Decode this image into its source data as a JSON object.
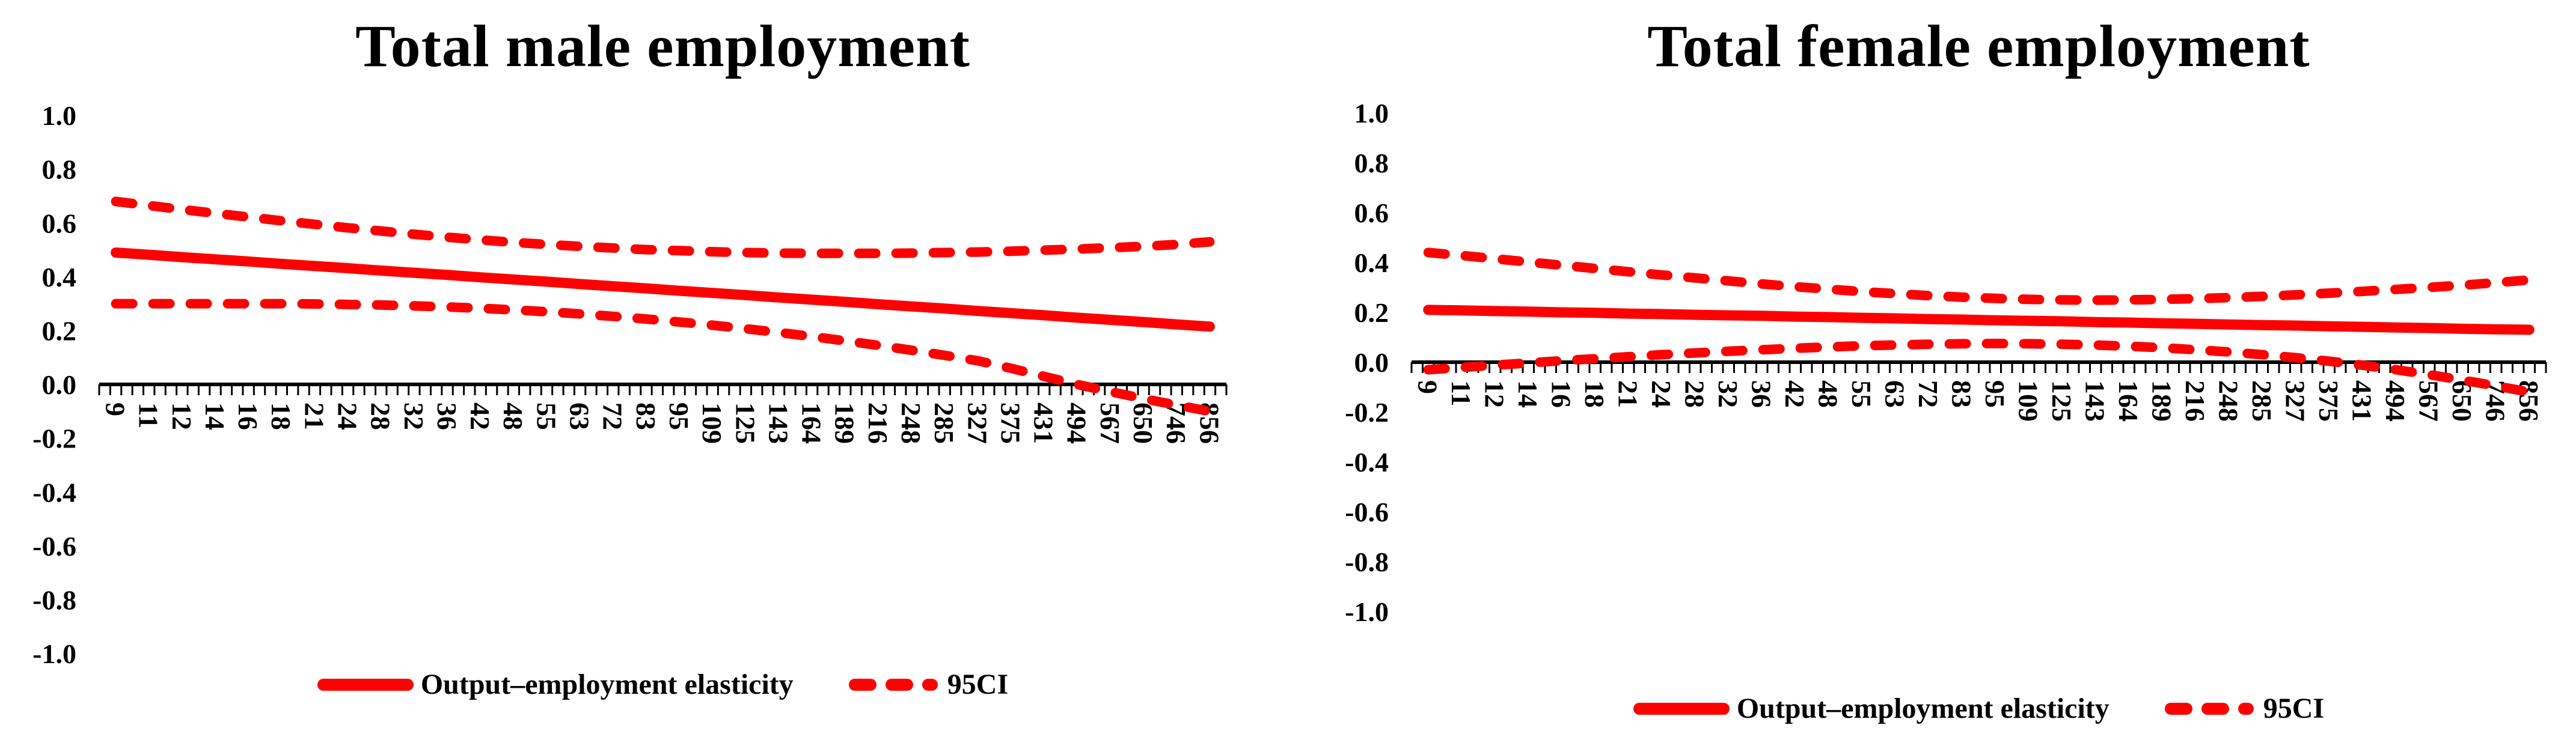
{
  "colors": {
    "series_red": "#FF0000",
    "axis_black": "#000000"
  },
  "chart_data": [
    {
      "type": "line",
      "title": "Total male employment",
      "xlabel": "",
      "ylabel": "",
      "ylim": [
        -1.0,
        1.0
      ],
      "grid": false,
      "legend_position": "bottom",
      "legend_entries": [
        "Output–employment elasticity",
        "95CI"
      ],
      "y_tick_labels": [
        "1.0",
        "0.8",
        "0.6",
        "0.4",
        "0.2",
        "0.0",
        "-0.2",
        "-0.4",
        "-0.6",
        "-0.8",
        "-1.0"
      ],
      "x_categories": [
        "9",
        "11",
        "12",
        "14",
        "16",
        "18",
        "21",
        "24",
        "28",
        "32",
        "36",
        "42",
        "48",
        "55",
        "63",
        "72",
        "83",
        "95",
        "109",
        "125",
        "143",
        "164",
        "189",
        "216",
        "248",
        "285",
        "327",
        "375",
        "431",
        "494",
        "567",
        "650",
        "746",
        "856"
      ],
      "series": [
        {
          "name": "Output–employment elasticity",
          "style": "solid",
          "values": [
            0.49,
            0.482,
            0.473,
            0.465,
            0.457,
            0.448,
            0.44,
            0.432,
            0.423,
            0.415,
            0.407,
            0.398,
            0.39,
            0.382,
            0.373,
            0.365,
            0.357,
            0.348,
            0.34,
            0.332,
            0.323,
            0.315,
            0.307,
            0.298,
            0.29,
            0.282,
            0.273,
            0.265,
            0.257,
            0.248,
            0.24,
            0.232,
            0.223,
            0.215
          ]
        },
        {
          "name": "95CI upper",
          "style": "dashed",
          "values": [
            0.68,
            0.665,
            0.65,
            0.636,
            0.622,
            0.608,
            0.595,
            0.582,
            0.57,
            0.558,
            0.547,
            0.537,
            0.528,
            0.52,
            0.513,
            0.507,
            0.501,
            0.497,
            0.493,
            0.49,
            0.488,
            0.487,
            0.487,
            0.487,
            0.488,
            0.49,
            0.492,
            0.495,
            0.499,
            0.503,
            0.508,
            0.513,
            0.52,
            0.53
          ]
        },
        {
          "name": "95CI lower",
          "style": "dashed",
          "values": [
            0.3,
            0.3,
            0.3,
            0.3,
            0.3,
            0.3,
            0.299,
            0.297,
            0.295,
            0.292,
            0.288,
            0.283,
            0.277,
            0.27,
            0.262,
            0.253,
            0.243,
            0.232,
            0.22,
            0.207,
            0.193,
            0.178,
            0.162,
            0.145,
            0.127,
            0.108,
            0.088,
            0.06,
            0.03,
            0.0,
            -0.027,
            -0.053,
            -0.077,
            -0.1
          ]
        }
      ]
    },
    {
      "type": "line",
      "title": "Total female employment",
      "xlabel": "",
      "ylabel": "",
      "ylim": [
        -1.0,
        1.0
      ],
      "grid": false,
      "legend_position": "bottom",
      "legend_entries": [
        "Output–employment elasticity",
        "95CI"
      ],
      "y_tick_labels": [
        "1.0",
        "0.8",
        "0.6",
        "0.4",
        "0.2",
        "0.0",
        "-0.2",
        "-0.4",
        "-0.6",
        "-0.8",
        "-1.0"
      ],
      "x_categories": [
        "9",
        "11",
        "12",
        "14",
        "16",
        "18",
        "21",
        "24",
        "28",
        "32",
        "36",
        "42",
        "48",
        "55",
        "63",
        "72",
        "83",
        "95",
        "109",
        "125",
        "143",
        "164",
        "189",
        "216",
        "248",
        "285",
        "327",
        "375",
        "431",
        "494",
        "567",
        "650",
        "746",
        "856"
      ],
      "series": [
        {
          "name": "Output–employment elasticity",
          "style": "solid",
          "values": [
            0.21,
            0.208,
            0.205,
            0.203,
            0.2,
            0.198,
            0.195,
            0.193,
            0.19,
            0.188,
            0.186,
            0.183,
            0.181,
            0.178,
            0.176,
            0.173,
            0.171,
            0.168,
            0.166,
            0.164,
            0.161,
            0.159,
            0.156,
            0.154,
            0.151,
            0.149,
            0.147,
            0.144,
            0.142,
            0.139,
            0.137,
            0.134,
            0.132,
            0.13
          ]
        },
        {
          "name": "95CI upper",
          "style": "dashed",
          "values": [
            0.44,
            0.428,
            0.415,
            0.402,
            0.389,
            0.376,
            0.363,
            0.35,
            0.338,
            0.326,
            0.314,
            0.303,
            0.293,
            0.283,
            0.275,
            0.267,
            0.261,
            0.256,
            0.252,
            0.25,
            0.249,
            0.25,
            0.252,
            0.255,
            0.259,
            0.264,
            0.27,
            0.277,
            0.284,
            0.292,
            0.3,
            0.309,
            0.319,
            0.33
          ]
        },
        {
          "name": "95CI lower",
          "style": "dashed",
          "values": [
            -0.03,
            -0.021,
            -0.012,
            -0.003,
            0.006,
            0.014,
            0.022,
            0.03,
            0.037,
            0.044,
            0.05,
            0.056,
            0.061,
            0.066,
            0.069,
            0.072,
            0.074,
            0.075,
            0.074,
            0.072,
            0.069,
            0.064,
            0.058,
            0.05,
            0.041,
            0.03,
            0.018,
            0.004,
            -0.012,
            -0.03,
            -0.05,
            -0.072,
            -0.095,
            -0.12
          ]
        }
      ]
    }
  ]
}
